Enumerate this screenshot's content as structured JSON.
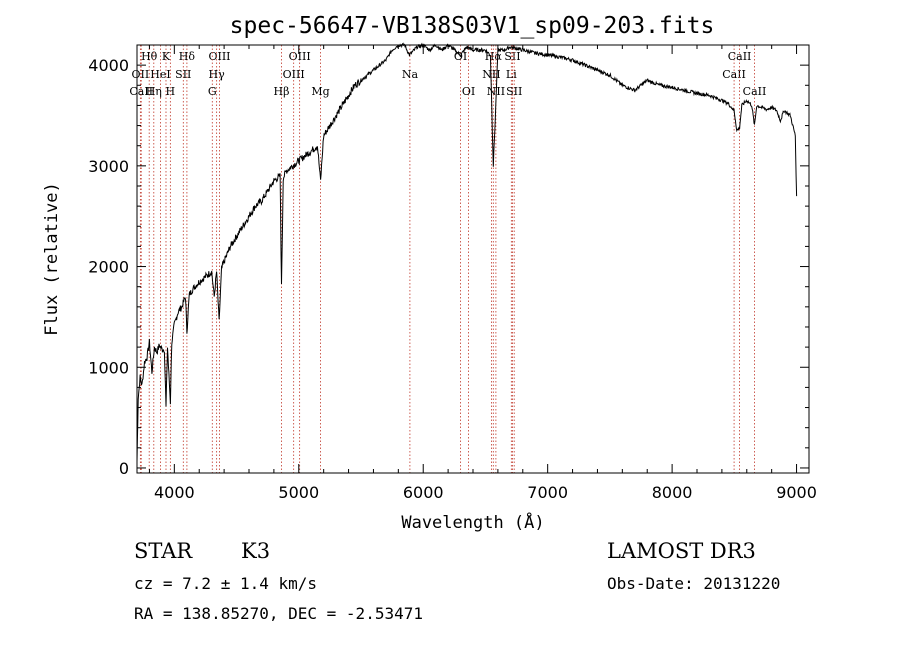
{
  "chart_data": {
    "type": "line",
    "title": "spec-56647-VB138S03V1_sp09-203.fits",
    "xlabel": "Wavelength (Å)",
    "ylabel": "Flux (relative)",
    "xlim": [
      3700,
      9100
    ],
    "ylim": [
      -50,
      4200
    ],
    "xticks": [
      4000,
      5000,
      6000,
      7000,
      8000,
      9000
    ],
    "yticks": [
      0,
      1000,
      2000,
      3000,
      4000
    ],
    "series": [
      {
        "name": "spectrum",
        "x": [
          3700,
          3710,
          3725,
          3740,
          3760,
          3780,
          3800,
          3820,
          3840,
          3860,
          3880,
          3900,
          3920,
          3933,
          3945,
          3968,
          3980,
          4000,
          4030,
          4060,
          4090,
          4101,
          4120,
          4150,
          4200,
          4250,
          4300,
          4320,
          4340,
          4360,
          4380,
          4400,
          4450,
          4500,
          4550,
          4600,
          4650,
          4700,
          4750,
          4800,
          4850,
          4861,
          4875,
          4900,
          4950,
          5000,
          5050,
          5100,
          5150,
          5175,
          5200,
          5250,
          5300,
          5350,
          5400,
          5450,
          5500,
          5550,
          5600,
          5650,
          5700,
          5750,
          5800,
          5850,
          5890,
          5950,
          6000,
          6050,
          6100,
          6150,
          6200,
          6250,
          6300,
          6350,
          6400,
          6450,
          6500,
          6540,
          6563,
          6580,
          6600,
          6650,
          6700,
          6800,
          6900,
          7000,
          7100,
          7200,
          7300,
          7400,
          7500,
          7600,
          7700,
          7800,
          7900,
          8000,
          8100,
          8200,
          8300,
          8400,
          8450,
          8498,
          8520,
          8542,
          8560,
          8600,
          8640,
          8662,
          8680,
          8720,
          8760,
          8800,
          8840,
          8870,
          8900,
          8950,
          8990,
          9000
        ],
        "values": [
          60,
          700,
          900,
          820,
          1050,
          1100,
          1250,
          950,
          1200,
          1150,
          1220,
          1180,
          1180,
          600,
          1200,
          650,
          1250,
          1420,
          1550,
          1600,
          1700,
          1350,
          1720,
          1780,
          1850,
          1900,
          1950,
          1700,
          1950,
          1450,
          1980,
          2050,
          2200,
          2300,
          2400,
          2500,
          2600,
          2650,
          2750,
          2850,
          2900,
          1800,
          2880,
          2950,
          3000,
          3050,
          3100,
          3150,
          3200,
          2850,
          3300,
          3400,
          3500,
          3600,
          3700,
          3800,
          3850,
          3900,
          3950,
          4000,
          4050,
          4150,
          4200,
          4200,
          4100,
          4180,
          4200,
          4150,
          4200,
          4150,
          4200,
          4150,
          4100,
          4180,
          4150,
          4150,
          4150,
          4100,
          3000,
          3500,
          4150,
          4150,
          4180,
          4150,
          4120,
          4100,
          4080,
          4050,
          4000,
          3950,
          3900,
          3800,
          3750,
          3850,
          3800,
          3780,
          3750,
          3720,
          3700,
          3650,
          3620,
          3550,
          3350,
          3380,
          3600,
          3650,
          3600,
          3400,
          3600,
          3580,
          3560,
          3580,
          3550,
          3450,
          3550,
          3500,
          3300,
          2700
        ]
      }
    ],
    "lines": [
      {
        "label": "Hθ",
        "x": 3798,
        "row": 0
      },
      {
        "label": "OII",
        "x": 3727,
        "row": 1
      },
      {
        "label": "CaII",
        "x": 3734,
        "row": 2
      },
      {
        "label": "HeI",
        "x": 3889,
        "row": 1
      },
      {
        "label": "Hη",
        "x": 3835,
        "row": 2
      },
      {
        "label": "K",
        "x": 3933,
        "row": 0
      },
      {
        "label": "H",
        "x": 3968,
        "row": 2
      },
      {
        "label": "SII",
        "x": 4072,
        "row": 1
      },
      {
        "label": "Hδ",
        "x": 4101,
        "row": 0
      },
      {
        "label": "OIII",
        "x": 4363,
        "row": 0
      },
      {
        "label": "Hγ",
        "x": 4340,
        "row": 1
      },
      {
        "label": "G",
        "x": 4305,
        "row": 2
      },
      {
        "label": "Hβ",
        "x": 4861,
        "row": 2
      },
      {
        "label": "OIII",
        "x": 5007,
        "row": 0
      },
      {
        "label": "OIII",
        "x": 4959,
        "row": 1
      },
      {
        "label": "Mg",
        "x": 5175,
        "row": 2
      },
      {
        "label": "Na",
        "x": 5893,
        "row": 1
      },
      {
        "label": "OI",
        "x": 6300,
        "row": 0
      },
      {
        "label": "OI",
        "x": 6364,
        "row": 2
      },
      {
        "label": "Hα",
        "x": 6563,
        "row": 0
      },
      {
        "label": "NII",
        "x": 6548,
        "row": 1
      },
      {
        "label": "NII",
        "x": 6584,
        "row": 2
      },
      {
        "label": "SII",
        "x": 6717,
        "row": 0
      },
      {
        "label": "Li",
        "x": 6708,
        "row": 1
      },
      {
        "label": "SII",
        "x": 6731,
        "row": 2
      },
      {
        "label": "CaII",
        "x": 8498,
        "row": 1
      },
      {
        "label": "CaII",
        "x": 8542,
        "row": 0
      },
      {
        "label": "CaII",
        "x": 8662,
        "row": 2
      }
    ]
  },
  "info": {
    "object_class": "STAR",
    "subclass": "K3",
    "survey": "LAMOST DR3",
    "cz": "cz = 7.2 ± 1.4 km/s",
    "obs_date": "Obs-Date: 20131220",
    "coords": "RA = 138.85270, DEC =  -2.53471"
  }
}
